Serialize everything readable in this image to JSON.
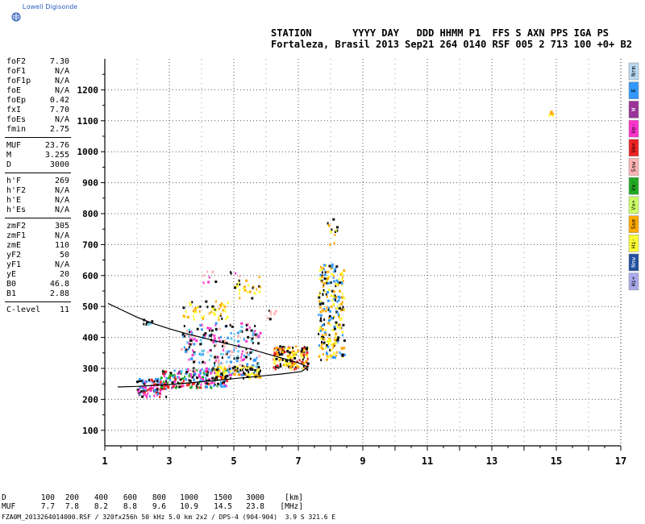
{
  "logo": {
    "text": "Lowell Digisonde"
  },
  "header": {
    "line1": "STATION       YYYY DAY   DDD HHMM P1  FFS S AXN PPS IGA PS",
    "line2": "Fortaleza, Brasil 2013 Sep21 264 0140 RSF 005 2 713 100 +0+ B2"
  },
  "params": {
    "group1": [
      {
        "label": "foF2",
        "value": "7.30"
      },
      {
        "label": "foF1",
        "value": "N/A"
      },
      {
        "label": "foF1p",
        "value": "N/A"
      },
      {
        "label": "foE",
        "value": "N/A"
      },
      {
        "label": "foEp",
        "value": "0.42"
      },
      {
        "label": "fxI",
        "value": "7.70"
      },
      {
        "label": "foEs",
        "value": "N/A"
      },
      {
        "label": "fmin",
        "value": "2.75"
      }
    ],
    "group2": [
      {
        "label": "MUF",
        "value": "23.76"
      },
      {
        "label": "M",
        "value": "3.255"
      },
      {
        "label": "D",
        "value": "3000"
      }
    ],
    "group3": [
      {
        "label": "h'F",
        "value": "269"
      },
      {
        "label": "h'F2",
        "value": "N/A"
      },
      {
        "label": "h'E",
        "value": "N/A"
      },
      {
        "label": "h'Es",
        "value": "N/A"
      }
    ],
    "group4": [
      {
        "label": "zmF2",
        "value": "305"
      },
      {
        "label": "zmF1",
        "value": "N/A"
      },
      {
        "label": "zmE",
        "value": "110"
      },
      {
        "label": "yF2",
        "value": "50"
      },
      {
        "label": "yF1",
        "value": "N/A"
      },
      {
        "label": "yE",
        "value": "20"
      },
      {
        "label": "B0",
        "value": "46.8"
      },
      {
        "label": "B1",
        "value": "2.88"
      }
    ],
    "group5": [
      {
        "label": "C-level",
        "value": "11"
      }
    ]
  },
  "legend": [
    {
      "label": "Nrm",
      "color": "#b8d8f0"
    },
    {
      "label": "E",
      "color": "#3399ff"
    },
    {
      "label": "W",
      "color": "#993399"
    },
    {
      "label": "Vo-",
      "color": "#ff33cc"
    },
    {
      "label": "Vo+",
      "color": "#ee2222"
    },
    {
      "label": "Ssw",
      "color": "#ffb3b3"
    },
    {
      "label": "Vx-",
      "color": "#22aa22"
    },
    {
      "label": "Vx+",
      "color": "#ccff66"
    },
    {
      "label": "Sse",
      "color": "#ffaa00"
    },
    {
      "label": "Hi-",
      "color": "#ffff33"
    },
    {
      "label": "Nnw",
      "color": "#1f4fa0"
    },
    {
      "label": "Hi+",
      "color": "#aaaaee"
    }
  ],
  "footer": {
    "d_label": "D",
    "d_values": [
      "100",
      "200",
      "400",
      "600",
      "800",
      "1000",
      "1500",
      "3000"
    ],
    "d_unit": "[km]",
    "muf_label": "MUF",
    "muf_values": [
      "7.7",
      "7.8",
      "8.2",
      "8.8",
      "9.6",
      "10.9",
      "14.5",
      "23.8"
    ],
    "muf_unit": "[MHz]",
    "file": "FZA0M_2013264014000.RSF / 320fx256h 50 kHz 5.0 km 2x2 / DPS-4 (904-904)  3.9 S 321.6 E"
  },
  "chart_data": {
    "type": "scatter",
    "x_ticks": [
      1,
      3,
      5,
      7,
      9,
      11,
      13,
      15,
      17
    ],
    "y_ticks": [
      100,
      200,
      300,
      400,
      500,
      600,
      700,
      800,
      900,
      1000,
      1100,
      1200
    ],
    "xlim": [
      1,
      17
    ],
    "ylim": [
      50,
      1300
    ],
    "grid": true,
    "profile_curve": {
      "x": [
        1.1,
        1.5,
        2.0,
        2.5,
        3.0,
        3.5,
        4.0,
        4.5,
        5.0,
        5.5,
        6.0,
        6.5,
        7.0,
        7.3,
        7.1,
        6.5,
        6.0,
        5.5,
        5.0,
        4.5,
        4.0,
        3.5,
        3.0,
        2.5,
        2.0,
        1.4
      ],
      "y": [
        510,
        490,
        465,
        445,
        428,
        413,
        400,
        387,
        375,
        363,
        348,
        333,
        318,
        305,
        290,
        282,
        277,
        272,
        267,
        262,
        257,
        252,
        248,
        245,
        242,
        240
      ]
    },
    "echo_clusters": [
      {
        "x0": 1.95,
        "x1": 2.9,
        "y0": 210,
        "y1": 270,
        "n": 90,
        "colors": [
          "#ee2222",
          "#111111",
          "#ff33cc",
          "#3399ff"
        ]
      },
      {
        "x0": 2.7,
        "x1": 4.8,
        "y0": 240,
        "y1": 300,
        "n": 180,
        "colors": [
          "#111111",
          "#ee2222",
          "#3399ff",
          "#ff33cc",
          "#22aa22"
        ]
      },
      {
        "x0": 3.3,
        "x1": 5.8,
        "y0": 280,
        "y1": 450,
        "n": 260,
        "colors": [
          "#111111",
          "#ffb3b3",
          "#66ccee",
          "#ff33cc",
          "#3399ff"
        ]
      },
      {
        "x0": 4.3,
        "x1": 5.8,
        "y0": 270,
        "y1": 310,
        "n": 90,
        "colors": [
          "#ffaa00",
          "#ffff33",
          "#111111"
        ]
      },
      {
        "x0": 6.2,
        "x1": 7.3,
        "y0": 300,
        "y1": 375,
        "n": 150,
        "colors": [
          "#ffaa00",
          "#ffff33",
          "#111111",
          "#ee2222"
        ]
      },
      {
        "x0": 7.6,
        "x1": 8.4,
        "y0": 330,
        "y1": 640,
        "n": 240,
        "colors": [
          "#111111",
          "#ffaa00",
          "#ffff33",
          "#3399ff"
        ]
      },
      {
        "x0": 3.4,
        "x1": 4.8,
        "y0": 460,
        "y1": 520,
        "n": 50,
        "colors": [
          "#ffaa00",
          "#111111",
          "#ffff33"
        ]
      },
      {
        "x0": 5.0,
        "x1": 5.8,
        "y0": 530,
        "y1": 600,
        "n": 25,
        "colors": [
          "#ffaa00",
          "#ffff33",
          "#111111"
        ]
      },
      {
        "x0": 4.0,
        "x1": 5.2,
        "y0": 580,
        "y1": 620,
        "n": 12,
        "colors": [
          "#ffb3b3",
          "#ff33cc",
          "#111111"
        ]
      },
      {
        "x0": 2.1,
        "x1": 2.5,
        "y0": 440,
        "y1": 465,
        "n": 8,
        "colors": [
          "#111111",
          "#66ccee"
        ]
      },
      {
        "x0": 6.0,
        "x1": 6.3,
        "y0": 460,
        "y1": 490,
        "n": 8,
        "colors": [
          "#ffb3b3",
          "#111111"
        ]
      },
      {
        "x0": 7.8,
        "x1": 8.2,
        "y0": 690,
        "y1": 790,
        "n": 12,
        "colors": [
          "#111111",
          "#ffaa00",
          "#ffff33"
        ]
      },
      {
        "x0": 14.75,
        "x1": 14.9,
        "y0": 1110,
        "y1": 1140,
        "n": 5,
        "colors": [
          "#ffff33",
          "#ffaa00"
        ]
      }
    ]
  }
}
